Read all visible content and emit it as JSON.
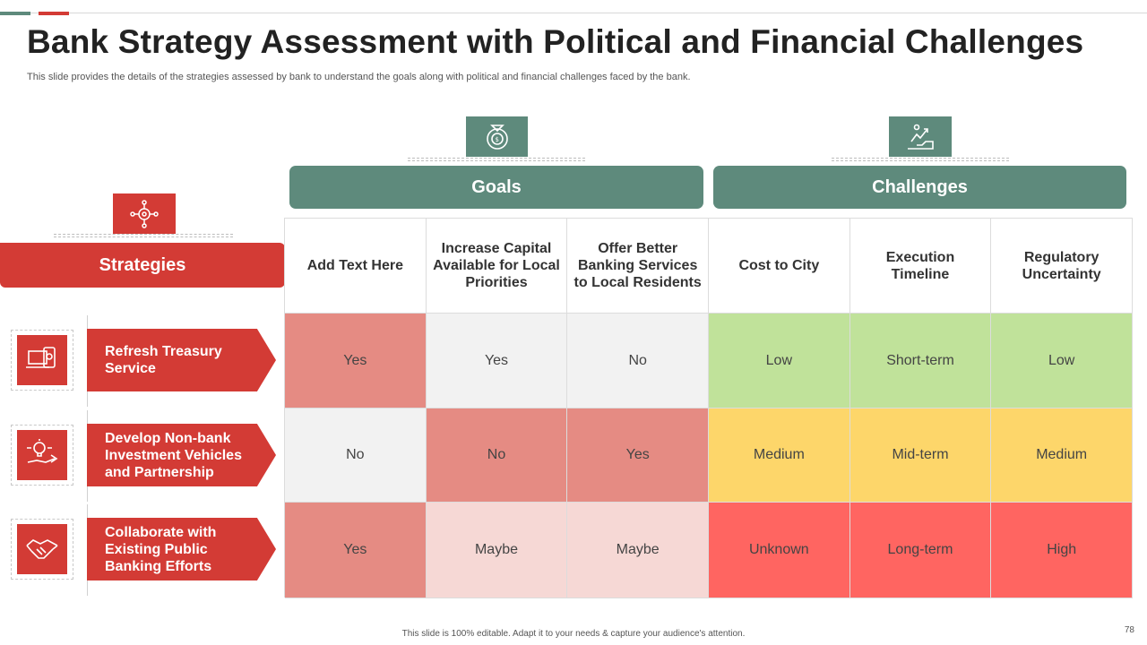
{
  "header": {
    "title": "Bank Strategy Assessment with Political and Financial Challenges",
    "subtitle": "This slide provides the details of the strategies assessed by bank to understand the goals along with political and financial challenges faced by the bank."
  },
  "groups": {
    "goals": "Goals",
    "challenges": "Challenges",
    "strategies": "Strategies"
  },
  "columns": [
    "Add Text Here",
    "Increase Capital Available for Local Priorities",
    "Offer Better Banking Services to Local Residents",
    "Cost to City",
    "Execution Timeline",
    "Regulatory Uncertainty"
  ],
  "rows": [
    {
      "label": "Refresh Treasury Service",
      "icon": "laptop-phone-icon",
      "cells": [
        "Yes",
        "Yes",
        "No",
        "Low",
        "Short-term",
        "Low"
      ]
    },
    {
      "label": "Develop Non-bank Investment Vehicles and Partnership",
      "icon": "hand-idea-icon",
      "cells": [
        "No",
        "No",
        "Yes",
        "Medium",
        "Mid-term",
        "Medium"
      ]
    },
    {
      "label": "Collaborate with Existing Public Banking Efforts",
      "icon": "handshake-icon",
      "cells": [
        "Yes",
        "Maybe",
        "Maybe",
        "Unknown",
        "Long-term",
        "High"
      ]
    }
  ],
  "cell_colors": [
    [
      "#e58b83",
      "#f2f2f2",
      "#f2f2f2",
      "#c0e29a",
      "#c0e29a",
      "#c0e29a"
    ],
    [
      "#f2f2f2",
      "#e58b83",
      "#e58b83",
      "#fdd66a",
      "#fdd66a",
      "#fdd66a"
    ],
    [
      "#e58b83",
      "#f6d8d5",
      "#f6d8d5",
      "#ff6561",
      "#ff6561",
      "#ff6561"
    ]
  ],
  "icons": {
    "goals": "money-target-icon",
    "challenges": "hand-growth-icon",
    "strategies": "network-gear-icon"
  },
  "colors": {
    "accent_green": "#5e8a7c",
    "accent_red": "#d33b35"
  },
  "footer": {
    "note": "This slide is 100% editable. Adapt it to your needs & capture your audience's attention.",
    "page": "78"
  }
}
